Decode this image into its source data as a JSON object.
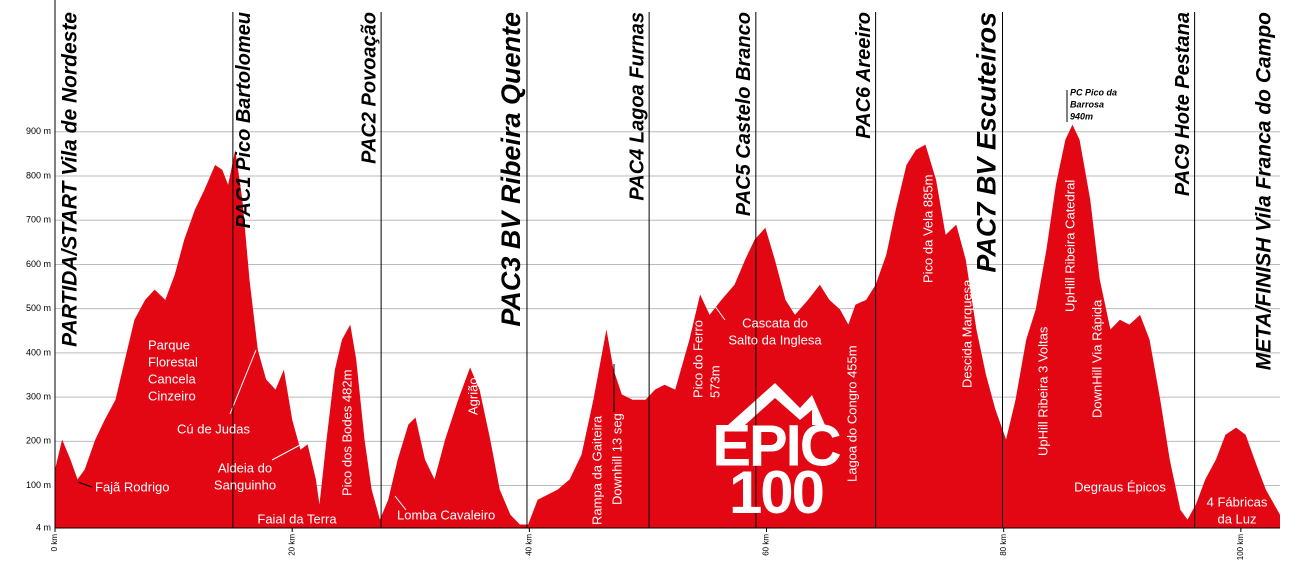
{
  "chart_data": {
    "type": "area",
    "x": [
      0,
      0.6,
      1.3,
      1.9,
      2.5,
      3.4,
      4.2,
      5.1,
      5.9,
      6.7,
      7.6,
      8.4,
      9.3,
      10.1,
      10.9,
      11.8,
      12.6,
      13.5,
      14.1,
      14.6,
      15.2,
      15.8,
      16.4,
      17.1,
      17.8,
      18.6,
      19.3,
      20.0,
      20.7,
      21.3,
      22.0,
      22.3,
      22.9,
      23.6,
      24.2,
      24.9,
      25.4,
      26.1,
      26.7,
      27.4,
      28.1,
      28.9,
      29.8,
      30.4,
      31.2,
      32.0,
      32.9,
      34.0,
      35.0,
      35.8,
      36.7,
      37.5,
      38.4,
      39.2,
      39.9,
      40.7,
      41.6,
      42.4,
      43.4,
      44.4,
      45.4,
      46.5,
      47.1,
      47.8,
      48.7,
      49.8,
      50.6,
      51.4,
      52.3,
      53.5,
      54.4,
      55.2,
      56.2,
      57.3,
      58.2,
      59.0,
      59.9,
      60.7,
      61.6,
      62.4,
      63.5,
      64.5,
      65.3,
      66.2,
      66.9,
      67.5,
      68.4,
      69.2,
      70.1,
      70.9,
      71.8,
      72.6,
      73.4,
      74.3,
      75.1,
      76.0,
      76.8,
      77.7,
      78.5,
      79.3,
      80.2,
      81.0,
      81.9,
      82.7,
      83.6,
      84.4,
      85.2,
      85.8,
      86.4,
      87.3,
      88.1,
      89.0,
      89.8,
      90.6,
      91.5,
      92.3,
      93.2,
      94.0,
      94.9,
      95.5,
      96.2,
      97.0,
      97.9,
      98.7,
      99.6,
      100.4,
      101.3,
      102.1,
      103.3
    ],
    "series": [
      {
        "color": "#e30613",
        "values": [
          136,
          204,
          159,
          114,
          136,
          204,
          249,
          294,
          385,
          475,
          520,
          543,
          520,
          577,
          656,
          724,
          769,
          825,
          814,
          780,
          859,
          746,
          566,
          407,
          340,
          317,
          362,
          249,
          181,
          193,
          114,
          57,
          204,
          362,
          430,
          464,
          385,
          204,
          91,
          23,
          68,
          159,
          238,
          254,
          159,
          114,
          204,
          294,
          367,
          317,
          204,
          91,
          34,
          12,
          12,
          68,
          80,
          91,
          114,
          170,
          294,
          453,
          362,
          306,
          294,
          294,
          317,
          328,
          317,
          430,
          532,
          486,
          520,
          554,
          611,
          656,
          683,
          611,
          520,
          486,
          520,
          554,
          520,
          498,
          464,
          509,
          520,
          554,
          622,
          724,
          825,
          859,
          871,
          791,
          667,
          690,
          611,
          453,
          351,
          272,
          204,
          294,
          430,
          498,
          633,
          780,
          882,
          916,
          882,
          746,
          566,
          453,
          475,
          464,
          486,
          430,
          294,
          159,
          45,
          23,
          57,
          114,
          159,
          215,
          231,
          215,
          148,
          91,
          34
        ]
      }
    ],
    "xlim": [
      0,
      103.3
    ],
    "ylim": [
      4,
      1198
    ],
    "xticks": [
      {
        "value": 0,
        "label": "0 km"
      },
      {
        "value": 20,
        "label": "20 km"
      },
      {
        "value": 40,
        "label": "40 km"
      },
      {
        "value": 60,
        "label": "60 km"
      },
      {
        "value": 80,
        "label": "80 km"
      },
      {
        "value": 100,
        "label": "100 km"
      }
    ],
    "yticks": [
      {
        "value": 4,
        "label": "4 m"
      },
      {
        "value": 100,
        "label": "100 m"
      },
      {
        "value": 200,
        "label": "200 m"
      },
      {
        "value": 300,
        "label": "300 m"
      },
      {
        "value": 400,
        "label": "400 m"
      },
      {
        "value": 500,
        "label": "500 m"
      },
      {
        "value": 600,
        "label": "600 m"
      },
      {
        "value": 700,
        "label": "700 m"
      },
      {
        "value": 800,
        "label": "800 m"
      },
      {
        "value": 900,
        "label": "900 m"
      }
    ],
    "grid": true,
    "start_label": "PARTIDA/START Vila de Nordeste",
    "finish_label": "META/FINISH Vila Franca do Campo",
    "checkpoints": [
      {
        "name": "PAC1 Pico Bartolomeu",
        "x": 15.0
      },
      {
        "name": "PAC2 Povoação",
        "x": 27.5
      },
      {
        "name": "PAC3 BV Ribeira Quente",
        "x": 39.8
      },
      {
        "name": "PAC4 Lagoa Furnas",
        "x": 50.1
      },
      {
        "name": "PAC5 Castelo Branco",
        "x": 59.1
      },
      {
        "name": "PAC6 Areeiro",
        "x": 69.2
      },
      {
        "name": "PAC7 BV Escuteiros",
        "x": 79.9
      },
      {
        "name": "PAC9 Hote Pestana",
        "x": 96.1
      }
    ],
    "annotations": [
      [
        "Fajã Rodrigo"
      ],
      [
        "Parque",
        "Florestal",
        "Cancela",
        "Cinzeiro"
      ],
      [
        "Cú de Judas"
      ],
      [
        "Aldeia do",
        "Sanguinho"
      ],
      [
        "Faial da Terra"
      ],
      [
        "Pico dos Bodes 482m"
      ],
      [
        "Lomba Cavaleiro"
      ],
      [
        "Agrião"
      ],
      [
        "Rampa da Gaiteira"
      ],
      [
        "Downhill 13 seg"
      ],
      [
        "Pico do Ferro",
        "573m"
      ],
      [
        "Cascata do",
        "Salto da Inglesa"
      ],
      [
        "Lagoa do Congro 455m"
      ],
      [
        "Pico da Vela 885m"
      ],
      [
        "Descida Marquesa"
      ],
      [
        "UpHill Ribeira 3 Voltas"
      ],
      [
        "UpHill Ribeira Catedral"
      ],
      [
        "DownHill Via Rápida"
      ],
      [
        "Degraus Épicos"
      ],
      [
        "4 Fábricas",
        "da Luz"
      ],
      [
        "PC Pico da",
        "Barrosa",
        "940m"
      ]
    ],
    "logo": [
      "EPIC",
      "100"
    ]
  }
}
